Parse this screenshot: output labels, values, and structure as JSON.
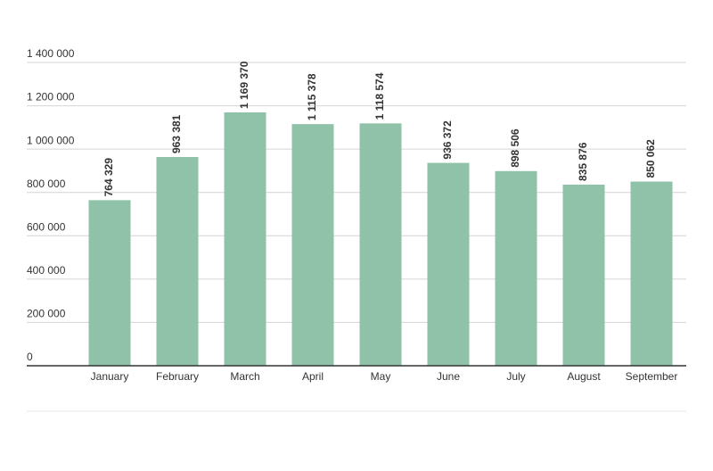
{
  "chart_data": {
    "type": "bar",
    "categories": [
      "January",
      "February",
      "March",
      "April",
      "May",
      "June",
      "July",
      "August",
      "September"
    ],
    "values": [
      764329,
      963381,
      1169370,
      1115378,
      1118574,
      936372,
      898506,
      835876,
      850062
    ],
    "value_labels": [
      "764 329",
      "963 381",
      "1 169 370",
      "1 115 378",
      "1 118 574",
      "936 372",
      "898 506",
      "835 876",
      "850 062"
    ],
    "color": "#8fc2a8",
    "ylim": [
      0,
      1400000
    ],
    "yticks": [
      0,
      {
        "value": 200000,
        "label": "200 000"
      },
      {
        "value": 400000,
        "label": "400 000"
      },
      {
        "value": 600000,
        "label": "600 000"
      },
      {
        "value": 800000,
        "label": "800 000"
      },
      {
        "value": 1000000,
        "label": "1 000 000"
      },
      {
        "value": 1200000,
        "label": "1 200 000"
      },
      {
        "value": 1400000,
        "label": "1 400 000"
      }
    ],
    "grid": true
  }
}
